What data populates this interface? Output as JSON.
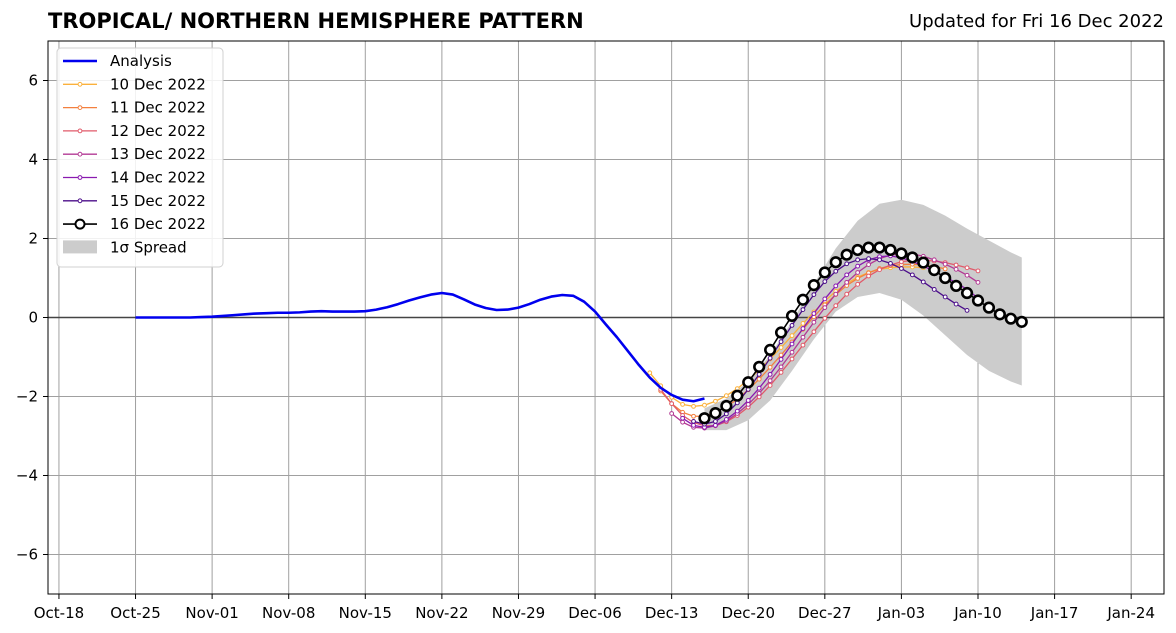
{
  "header": {
    "title": "TROPICAL/ NORTHERN HEMISPHERE PATTERN",
    "updated": "Updated for Fri 16 Dec 2022"
  },
  "chart_data": {
    "type": "line",
    "x_ticks": [
      "Oct-18",
      "Oct-25",
      "Nov-01",
      "Nov-08",
      "Nov-15",
      "Nov-22",
      "Nov-29",
      "Dec-06",
      "Dec-13",
      "Dec-20",
      "Dec-27",
      "Jan-03",
      "Jan-10",
      "Jan-17",
      "Jan-24"
    ],
    "x_tick_dates": [
      "2022-10-18",
      "2022-10-25",
      "2022-11-01",
      "2022-11-08",
      "2022-11-15",
      "2022-11-22",
      "2022-11-29",
      "2022-12-06",
      "2022-12-13",
      "2022-12-20",
      "2022-12-27",
      "2023-01-03",
      "2023-01-10",
      "2023-01-17",
      "2023-01-24"
    ],
    "xlim": [
      "2022-10-17",
      "2023-01-27"
    ],
    "ylim": [
      -7,
      7
    ],
    "y_ticks": [
      -6,
      -4,
      -2,
      0,
      2,
      4,
      6
    ],
    "y_tick_labels": [
      "−6",
      "−4",
      "−2",
      "0",
      "2",
      "4",
      "6"
    ],
    "grid": true,
    "zero_line": true,
    "legend_position": "top-left",
    "analysis": {
      "name": "Analysis",
      "color": "#0000ee",
      "x": [
        "2022-10-25",
        "2022-10-26",
        "2022-10-27",
        "2022-10-28",
        "2022-10-29",
        "2022-10-30",
        "2022-10-31",
        "2022-11-01",
        "2022-11-02",
        "2022-11-03",
        "2022-11-04",
        "2022-11-05",
        "2022-11-06",
        "2022-11-07",
        "2022-11-08",
        "2022-11-09",
        "2022-11-10",
        "2022-11-11",
        "2022-11-12",
        "2022-11-13",
        "2022-11-14",
        "2022-11-15",
        "2022-11-16",
        "2022-11-17",
        "2022-11-18",
        "2022-11-19",
        "2022-11-20",
        "2022-11-21",
        "2022-11-22",
        "2022-11-23",
        "2022-11-24",
        "2022-11-25",
        "2022-11-26",
        "2022-11-27",
        "2022-11-28",
        "2022-11-29",
        "2022-11-30",
        "2022-12-01",
        "2022-12-02",
        "2022-12-03",
        "2022-12-04",
        "2022-12-05",
        "2022-12-06",
        "2022-12-07",
        "2022-12-08",
        "2022-12-09",
        "2022-12-10",
        "2022-12-11",
        "2022-12-12",
        "2022-12-13",
        "2022-12-14",
        "2022-12-15",
        "2022-12-16"
      ],
      "y": [
        0.0,
        0.0,
        0.0,
        0.0,
        0.0,
        0.0,
        0.01,
        0.02,
        0.04,
        0.06,
        0.08,
        0.1,
        0.11,
        0.12,
        0.12,
        0.13,
        0.15,
        0.16,
        0.15,
        0.15,
        0.15,
        0.16,
        0.2,
        0.26,
        0.34,
        0.43,
        0.51,
        0.58,
        0.62,
        0.58,
        0.46,
        0.33,
        0.24,
        0.19,
        0.2,
        0.25,
        0.34,
        0.45,
        0.53,
        0.57,
        0.55,
        0.4,
        0.15,
        -0.18,
        -0.5,
        -0.85,
        -1.2,
        -1.52,
        -1.78,
        -1.96,
        -2.08,
        -2.12,
        -2.05
      ]
    },
    "forecasts": [
      {
        "name": "10 Dec 2022",
        "color": "#fbb13c",
        "start": "2022-12-11",
        "y": [
          -1.4,
          -1.73,
          -2.02,
          -2.2,
          -2.25,
          -2.22,
          -2.12,
          -1.98,
          -1.8,
          -1.58,
          -1.33,
          -1.05,
          -0.76,
          -0.46,
          -0.15,
          0.14,
          0.42,
          0.66,
          0.86,
          1.02,
          1.14,
          1.22,
          1.26,
          1.28,
          1.28,
          1.26
        ]
      },
      {
        "name": "11 Dec 2022",
        "color": "#f3803f",
        "start": "2022-12-12",
        "y": [
          -1.86,
          -2.18,
          -2.4,
          -2.5,
          -2.5,
          -2.4,
          -2.26,
          -2.07,
          -1.83,
          -1.56,
          -1.26,
          -0.95,
          -0.62,
          -0.3,
          0.02,
          0.32,
          0.58,
          0.81,
          0.99,
          1.13,
          1.24,
          1.31,
          1.34,
          1.35,
          1.33,
          1.29,
          1.23
        ]
      },
      {
        "name": "12 Dec 2022",
        "color": "#e15a6a",
        "start": "2022-12-12",
        "y": [
          -1.82,
          -2.18,
          -2.48,
          -2.66,
          -2.74,
          -2.74,
          -2.64,
          -2.48,
          -2.27,
          -2.01,
          -1.72,
          -1.39,
          -1.05,
          -0.7,
          -0.36,
          -0.02,
          0.3,
          0.59,
          0.84,
          1.05,
          1.21,
          1.33,
          1.41,
          1.45,
          1.45,
          1.43,
          1.39,
          1.33,
          1.26,
          1.18
        ]
      },
      {
        "name": "13 Dec 2022",
        "color": "#b33994",
        "start": "2022-12-13",
        "y": [
          -2.43,
          -2.65,
          -2.78,
          -2.8,
          -2.74,
          -2.62,
          -2.43,
          -2.2,
          -1.92,
          -1.6,
          -1.25,
          -0.88,
          -0.5,
          -0.12,
          0.25,
          0.59,
          0.89,
          1.14,
          1.34,
          1.49,
          1.58,
          1.62,
          1.61,
          1.55,
          1.46,
          1.35,
          1.22,
          1.07,
          0.89
        ]
      },
      {
        "name": "14 Dec 2022",
        "color": "#8a1ab0",
        "start": "2022-12-14",
        "y": [
          -2.55,
          -2.73,
          -2.78,
          -2.73,
          -2.58,
          -2.37,
          -2.1,
          -1.79,
          -1.44,
          -1.06,
          -0.67,
          -0.28,
          0.1,
          0.47,
          0.8,
          1.08,
          1.3,
          1.46,
          1.54,
          1.56,
          1.51,
          1.42,
          1.3,
          1.17,
          1.03,
          0.88,
          0.71,
          0.49
        ]
      },
      {
        "name": "15 Dec 2022",
        "color": "#4b0e8a",
        "start": "2022-12-15",
        "y": [
          -2.63,
          -2.7,
          -2.63,
          -2.44,
          -2.16,
          -1.82,
          -1.44,
          -1.03,
          -0.61,
          -0.2,
          0.2,
          0.58,
          0.91,
          1.17,
          1.36,
          1.46,
          1.49,
          1.46,
          1.37,
          1.24,
          1.08,
          0.9,
          0.71,
          0.52,
          0.34,
          0.18
        ]
      },
      {
        "name": "16 Dec 2022",
        "color": "#000000",
        "start": "2022-12-16",
        "y": [
          -2.55,
          -2.42,
          -2.24,
          -1.98,
          -1.64,
          -1.25,
          -0.82,
          -0.38,
          0.04,
          0.45,
          0.82,
          1.14,
          1.4,
          1.59,
          1.71,
          1.77,
          1.77,
          1.71,
          1.62,
          1.52,
          1.39,
          1.2,
          1.0,
          0.8,
          0.62,
          0.43,
          0.25,
          0.08,
          -0.03,
          -0.11
        ]
      }
    ],
    "spread": {
      "name": "1σ Spread",
      "color": "#cccccc",
      "x": [
        "2022-12-16",
        "2022-12-18",
        "2022-12-20",
        "2022-12-22",
        "2022-12-24",
        "2022-12-26",
        "2022-12-28",
        "2022-12-30",
        "2023-01-01",
        "2023-01-03",
        "2023-01-05",
        "2023-01-07",
        "2023-01-09",
        "2023-01-11",
        "2023-01-13",
        "2023-01-14"
      ],
      "upper": [
        -2.3,
        -2.05,
        -1.62,
        -0.95,
        -0.1,
        0.85,
        1.75,
        2.45,
        2.88,
        2.98,
        2.85,
        2.58,
        2.25,
        1.95,
        1.65,
        1.52
      ],
      "lower": [
        -2.85,
        -2.85,
        -2.6,
        -2.1,
        -1.35,
        -0.55,
        0.15,
        0.52,
        0.62,
        0.45,
        0.05,
        -0.45,
        -0.95,
        -1.35,
        -1.62,
        -1.72
      ]
    }
  }
}
